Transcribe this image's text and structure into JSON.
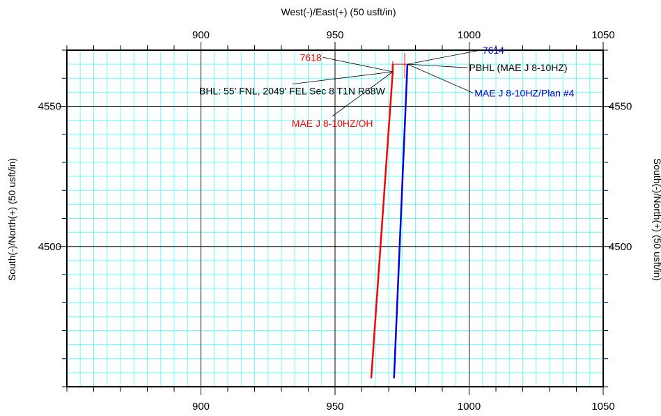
{
  "chart_data": {
    "type": "line",
    "title": "",
    "xlabel": "West(-)/East(+) (50 usft/in)",
    "ylabel": "South(-)/North(+) (50 usft/in)",
    "ylabel_right": "South(-)/North(+) (50 usft/in)",
    "xlim": [
      850,
      1050
    ],
    "ylim": [
      4450,
      4570
    ],
    "x_ticks": [
      900,
      950,
      1000,
      1050
    ],
    "y_ticks": [
      4500,
      4550
    ],
    "minor_grid_step": 5,
    "grid": true,
    "colors": {
      "grid_minor": "#66ffff",
      "grid_major": "#000000",
      "actual": "#ff0000",
      "plan": "#0000dd"
    },
    "series": [
      {
        "name": "MAE J 8-10HZ/OH",
        "color": "#ff0000",
        "x": [
          963.5,
          971.5,
          971.5
        ],
        "y": [
          4453,
          4562,
          4565
        ]
      },
      {
        "name": "MAE J 8-10HZ/Plan #4",
        "color": "#0000dd",
        "x": [
          972,
          977,
          977
        ],
        "y": [
          4453,
          4565,
          4565
        ]
      }
    ],
    "target_lines": [
      {
        "color": "#ff0000",
        "x": [
          971.5,
          971.5
        ],
        "y": [
          4560,
          4566
        ]
      },
      {
        "color": "#ff0000",
        "x": [
          976,
          976
        ],
        "y": [
          4560,
          4569
        ]
      },
      {
        "color": "#ff0000",
        "x": [
          971.5,
          977
        ],
        "y": [
          4565,
          4565
        ]
      }
    ],
    "annotations": [
      {
        "text": "7618",
        "color": "#ff0000",
        "x": 945,
        "y": 4566.2,
        "point": [
          971.5,
          4562.3
        ],
        "anchor": "end"
      },
      {
        "text": "7614",
        "color": "#0000dd",
        "x": 1005,
        "y": 4568.8,
        "point": [
          977,
          4565
        ],
        "anchor": "start"
      },
      {
        "text": "PBHL (MAE J 8-10HZ)",
        "color": "#000000",
        "x": 1000,
        "y": 4562.5,
        "point": [
          977,
          4565
        ],
        "anchor": "start"
      },
      {
        "text": "MAE J 8-10HZ/Plan #4",
        "color": "#0000dd",
        "x": 1002,
        "y": 4553.5,
        "point": [
          977,
          4565
        ],
        "anchor": "start"
      },
      {
        "text": "BHL: 55' FNL, 2049' FEL Sec 8 T1N R68W",
        "color": "#000000",
        "x": 934,
        "y": 4554.2,
        "point": [
          971.5,
          4562.3
        ],
        "anchor": "middle"
      },
      {
        "text": "MAE J 8-10HZ/OH",
        "color": "#ff0000",
        "x": 949,
        "y": 4542.7,
        "point": [
          971.5,
          4562.3
        ],
        "anchor": "middle"
      }
    ]
  }
}
